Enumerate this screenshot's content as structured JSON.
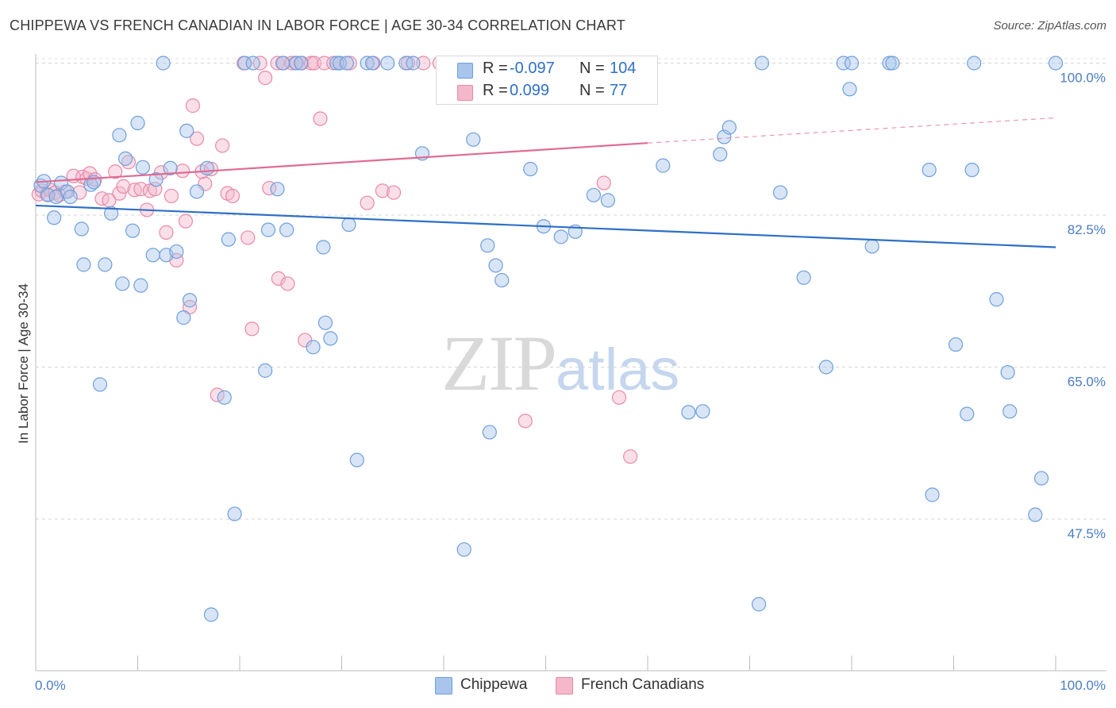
{
  "title": "CHIPPEWA VS FRENCH CANADIAN IN LABOR FORCE | AGE 30-34 CORRELATION CHART",
  "source": "Source: ZipAtlas.com",
  "watermark": {
    "zip": "ZIP",
    "atlas": "atlas"
  },
  "colors": {
    "blue": "#a9c5ec",
    "blue_stroke": "#6f9fdc",
    "pink": "#f5b8cb",
    "pink_stroke": "#e88aa8",
    "blue_line": "#2f6fc6",
    "pink_line": "#e06b93"
  },
  "legend": {
    "rows": [
      {
        "r_label": "R =",
        "r_value": "-0.097",
        "n_label": "N =",
        "n_value": "104",
        "color": "#a9c5ec"
      },
      {
        "r_label": "R =",
        "r_value": "0.099",
        "n_label": "N =",
        "n_value": "77",
        "color": "#f5b8cb"
      }
    ]
  },
  "bottom_legend": [
    {
      "label": "Chippewa",
      "color": "#a9c5ec"
    },
    {
      "label": "French Canadians",
      "color": "#f5b8cb"
    }
  ],
  "chart_data": {
    "type": "scatter",
    "title": "CHIPPEWA VS FRENCH CANADIAN IN LABOR FORCE | AGE 30-34 CORRELATION CHART",
    "xlabel": "",
    "ylabel": "In Labor Force | Age 30-34",
    "xlim": [
      0,
      100
    ],
    "ylim": [
      31.5,
      101.5
    ],
    "x_tick_labels": [
      "0.0%",
      "100.0%"
    ],
    "y_ticks": [
      {
        "value": 100.0,
        "label": "100.0%"
      },
      {
        "value": 82.5,
        "label": "82.5%"
      },
      {
        "value": 65.0,
        "label": "65.0%"
      },
      {
        "value": 47.5,
        "label": "47.5%"
      }
    ],
    "series": [
      {
        "name": "Chippewa",
        "R": -0.097,
        "N": 104,
        "trend": {
          "x": [
            0,
            100
          ],
          "y": [
            83.6,
            78.8
          ],
          "dashed_from": null
        },
        "points": [
          [
            0.5,
            85.9
          ],
          [
            0.8,
            86.4
          ],
          [
            1.2,
            84.8
          ],
          [
            1.8,
            82.2
          ],
          [
            2.0,
            84.6
          ],
          [
            2.5,
            86.2
          ],
          [
            3.1,
            85.2
          ],
          [
            3.4,
            84.6
          ],
          [
            4.5,
            80.9
          ],
          [
            4.7,
            76.8
          ],
          [
            5.4,
            86.0
          ],
          [
            5.7,
            86.3
          ],
          [
            6.3,
            63.0
          ],
          [
            6.8,
            76.8
          ],
          [
            7.4,
            82.7
          ],
          [
            8.2,
            91.7
          ],
          [
            8.5,
            74.6
          ],
          [
            8.8,
            89.0
          ],
          [
            9.5,
            80.7
          ],
          [
            10.0,
            93.1
          ],
          [
            10.3,
            74.4
          ],
          [
            10.5,
            88.0
          ],
          [
            11.5,
            77.9
          ],
          [
            11.8,
            86.6
          ],
          [
            12.5,
            100.0
          ],
          [
            12.8,
            77.9
          ],
          [
            13.2,
            87.9
          ],
          [
            13.8,
            78.3
          ],
          [
            14.5,
            70.7
          ],
          [
            14.8,
            92.2
          ],
          [
            15.1,
            72.7
          ],
          [
            15.8,
            85.2
          ],
          [
            16.8,
            87.9
          ],
          [
            17.2,
            36.5
          ],
          [
            18.5,
            61.5
          ],
          [
            18.9,
            79.7
          ],
          [
            19.5,
            48.1
          ],
          [
            20.5,
            100.0
          ],
          [
            21.3,
            100.0
          ],
          [
            22.5,
            64.6
          ],
          [
            22.8,
            80.8
          ],
          [
            23.7,
            85.5
          ],
          [
            24.2,
            100.0
          ],
          [
            24.6,
            80.8
          ],
          [
            25.5,
            100.0
          ],
          [
            26.0,
            100.0
          ],
          [
            27.2,
            67.3
          ],
          [
            28.2,
            78.8
          ],
          [
            28.4,
            70.1
          ],
          [
            28.9,
            68.3
          ],
          [
            29.5,
            100.0
          ],
          [
            29.8,
            100.0
          ],
          [
            30.5,
            100.0
          ],
          [
            30.7,
            81.4
          ],
          [
            31.5,
            54.3
          ],
          [
            32.5,
            100.0
          ],
          [
            33.0,
            100.0
          ],
          [
            34.5,
            100.0
          ],
          [
            36.3,
            100.0
          ],
          [
            37.0,
            100.0
          ],
          [
            37.9,
            89.6
          ],
          [
            41.0,
            100.0
          ],
          [
            41.8,
            100.0
          ],
          [
            42.0,
            44.0
          ],
          [
            42.9,
            91.2
          ],
          [
            44.3,
            79.0
          ],
          [
            44.5,
            57.5
          ],
          [
            45.1,
            76.7
          ],
          [
            45.7,
            75.0
          ],
          [
            46.8,
            100.0
          ],
          [
            47.5,
            100.0
          ],
          [
            48.5,
            87.8
          ],
          [
            49.8,
            81.2
          ],
          [
            51.5,
            80.0
          ],
          [
            52.5,
            100.0
          ],
          [
            52.9,
            80.6
          ],
          [
            54.7,
            84.8
          ],
          [
            56.1,
            84.2
          ],
          [
            58.7,
            100.0
          ],
          [
            59.5,
            100.0
          ],
          [
            61.5,
            88.2
          ],
          [
            64.0,
            59.8
          ],
          [
            65.4,
            59.9
          ],
          [
            67.1,
            89.5
          ],
          [
            67.5,
            91.5
          ],
          [
            68.0,
            92.6
          ],
          [
            70.9,
            37.7
          ],
          [
            71.2,
            100.0
          ],
          [
            73.0,
            85.1
          ],
          [
            75.3,
            75.3
          ],
          [
            77.5,
            65.0
          ],
          [
            79.2,
            100.0
          ],
          [
            79.8,
            97.0
          ],
          [
            80.0,
            100.0
          ],
          [
            82.0,
            78.9
          ],
          [
            83.7,
            100.0
          ],
          [
            84.0,
            100.0
          ],
          [
            87.6,
            87.7
          ],
          [
            87.9,
            50.3
          ],
          [
            90.2,
            67.6
          ],
          [
            91.3,
            59.6
          ],
          [
            91.8,
            87.7
          ],
          [
            92.0,
            100.0
          ],
          [
            94.2,
            72.8
          ],
          [
            95.3,
            64.4
          ],
          [
            95.5,
            59.9
          ],
          [
            98.0,
            48.0
          ],
          [
            98.6,
            52.2
          ],
          [
            100.0,
            100.0
          ]
        ]
      },
      {
        "name": "French Canadians",
        "R": 0.099,
        "N": 77,
        "trend": {
          "x": [
            0,
            60,
            100
          ],
          "y": [
            86.3,
            90.8,
            93.7
          ],
          "dashed_from": 60
        },
        "points": [
          [
            0.3,
            84.9
          ],
          [
            0.6,
            85.3
          ],
          [
            1.1,
            84.9
          ],
          [
            1.4,
            85.4
          ],
          [
            1.9,
            85.1
          ],
          [
            2.3,
            84.8
          ],
          [
            2.9,
            85.2
          ],
          [
            3.7,
            87.0
          ],
          [
            4.3,
            85.1
          ],
          [
            4.6,
            86.9
          ],
          [
            5.0,
            86.7
          ],
          [
            5.3,
            87.3
          ],
          [
            5.8,
            86.6
          ],
          [
            6.5,
            84.4
          ],
          [
            7.2,
            84.2
          ],
          [
            7.8,
            87.5
          ],
          [
            8.2,
            85.0
          ],
          [
            8.6,
            85.8
          ],
          [
            9.1,
            88.6
          ],
          [
            9.7,
            85.4
          ],
          [
            10.3,
            85.5
          ],
          [
            10.9,
            83.1
          ],
          [
            11.2,
            85.3
          ],
          [
            11.7,
            85.5
          ],
          [
            12.3,
            87.4
          ],
          [
            12.8,
            80.5
          ],
          [
            13.3,
            84.7
          ],
          [
            13.8,
            77.3
          ],
          [
            14.4,
            87.6
          ],
          [
            14.7,
            81.8
          ],
          [
            15.1,
            71.9
          ],
          [
            15.4,
            95.1
          ],
          [
            15.8,
            91.3
          ],
          [
            16.3,
            87.5
          ],
          [
            16.6,
            86.1
          ],
          [
            17.2,
            87.8
          ],
          [
            17.8,
            61.8
          ],
          [
            18.3,
            90.5
          ],
          [
            18.8,
            85.0
          ],
          [
            19.3,
            84.7
          ],
          [
            20.4,
            100.0
          ],
          [
            20.8,
            79.9
          ],
          [
            21.2,
            69.4
          ],
          [
            22.0,
            100.0
          ],
          [
            22.5,
            98.3
          ],
          [
            22.9,
            85.6
          ],
          [
            23.7,
            100.0
          ],
          [
            23.8,
            75.2
          ],
          [
            24.3,
            100.0
          ],
          [
            24.7,
            74.6
          ],
          [
            25.1,
            100.0
          ],
          [
            25.6,
            100.0
          ],
          [
            26.1,
            100.0
          ],
          [
            26.4,
            68.1
          ],
          [
            27.0,
            100.0
          ],
          [
            27.3,
            100.0
          ],
          [
            27.9,
            93.6
          ],
          [
            28.3,
            100.0
          ],
          [
            29.2,
            100.0
          ],
          [
            29.8,
            100.0
          ],
          [
            30.8,
            100.0
          ],
          [
            32.5,
            83.9
          ],
          [
            33.1,
            100.0
          ],
          [
            34.0,
            85.3
          ],
          [
            35.1,
            85.1
          ],
          [
            36.5,
            100.0
          ],
          [
            38.0,
            100.0
          ],
          [
            39.6,
            100.0
          ],
          [
            40.3,
            100.0
          ],
          [
            42.8,
            100.0
          ],
          [
            43.0,
            100.0
          ],
          [
            44.8,
            100.0
          ],
          [
            48.0,
            58.8
          ],
          [
            55.7,
            86.2
          ],
          [
            57.2,
            61.5
          ],
          [
            58.3,
            54.7
          ],
          [
            46.5,
            100.0
          ]
        ]
      }
    ]
  }
}
